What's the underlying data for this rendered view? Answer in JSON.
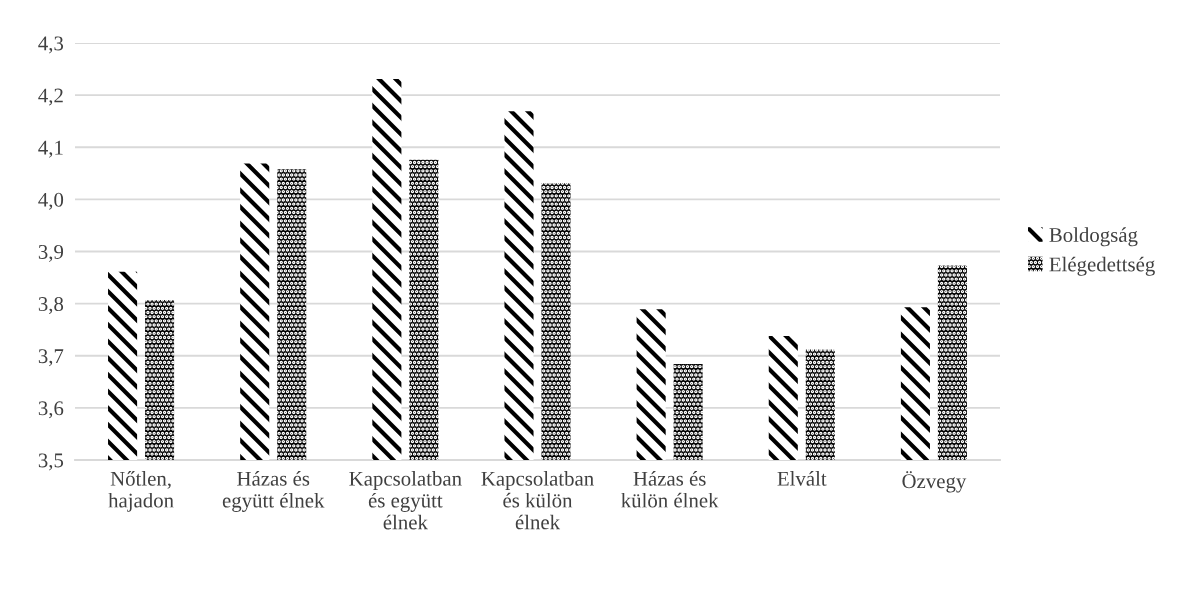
{
  "chart_data": {
    "type": "bar",
    "categories": [
      "Nőtlen,\nhajadon",
      "Házas és\negyütt élnek",
      "Kapcsolatban\nés együtt\nélnek",
      "Kapcsolatban\nés külön\nélnek",
      "Házas és\nkülön élnek",
      "Elvált",
      "Özvegy"
    ],
    "series": [
      {
        "name": "Boldogság",
        "color": "#000000",
        "values": [
          3.861,
          4.069,
          4.231,
          4.169,
          3.789,
          3.738,
          3.793
        ]
      },
      {
        "name": "Elégedettség",
        "color": "#000000",
        "values": [
          3.807,
          4.058,
          4.076,
          4.031,
          3.684,
          3.712,
          3.873
        ]
      }
    ],
    "ylim": [
      3.5,
      4.3
    ],
    "yticks": [
      {
        "value": 3.5,
        "label": "3,5"
      },
      {
        "value": 3.6,
        "label": "3,6"
      },
      {
        "value": 3.7,
        "label": "3,7"
      },
      {
        "value": 3.8,
        "label": "3,8"
      },
      {
        "value": 3.9,
        "label": "3,9"
      },
      {
        "value": 4.0,
        "label": "4,0"
      },
      {
        "value": 4.1,
        "label": "4,1"
      },
      {
        "value": 4.2,
        "label": "4,2"
      },
      {
        "value": 4.3,
        "label": "4,3"
      }
    ],
    "grid": "y",
    "legend": "right"
  }
}
